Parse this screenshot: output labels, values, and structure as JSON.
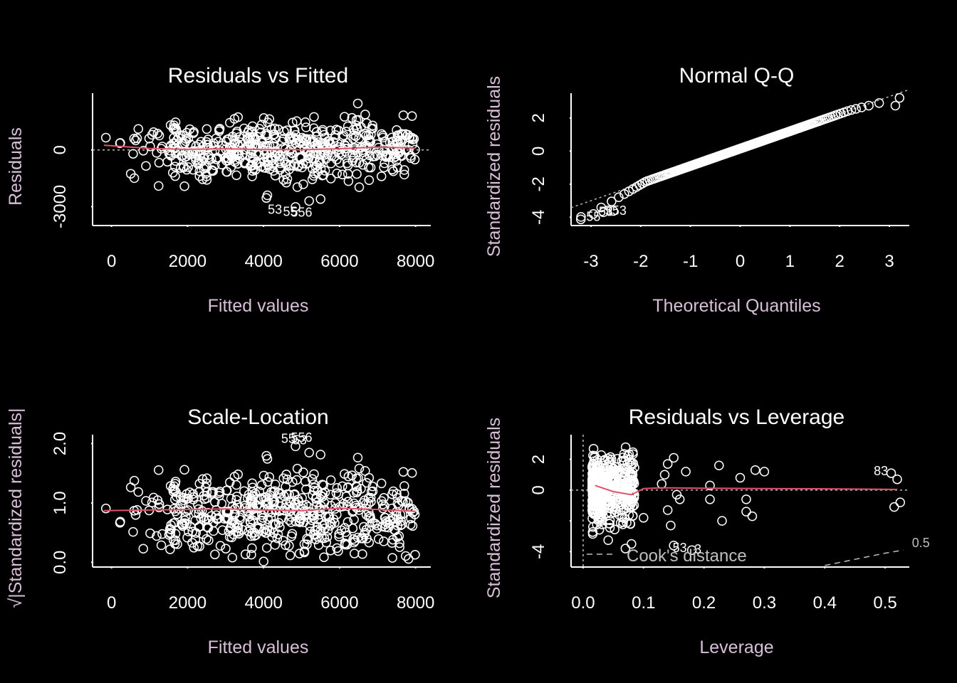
{
  "colors": {
    "background": "#000000",
    "foreground": "#ffffff",
    "label": "#d8bfd8",
    "smooth": "#df536b",
    "reference": "#bebebe"
  },
  "chart_data": [
    {
      "id": "p1",
      "type": "scatter",
      "title": "Residuals vs Fitted",
      "xlabel": "Fitted values",
      "ylabel": "Residuals",
      "xlim": [
        -500,
        8400
      ],
      "ylim": [
        -4000,
        3000
      ],
      "xticks": [
        0,
        2000,
        4000,
        6000,
        8000
      ],
      "yticks": [
        -3000,
        0
      ],
      "hline": 0,
      "smooth": {
        "x": [
          -200,
          1000,
          2000,
          3000,
          4000,
          5000,
          6000,
          7000,
          8000
        ],
        "y": [
          250,
          80,
          30,
          60,
          20,
          10,
          60,
          150,
          100
        ]
      },
      "annotations": [
        {
          "label": "53",
          "x": 4300,
          "y": -3200
        },
        {
          "label": "55",
          "x": 4700,
          "y": -3300
        },
        {
          "label": "556",
          "x": 5000,
          "y": -3350
        }
      ]
    },
    {
      "id": "p2",
      "type": "scatter",
      "title": "Normal Q-Q",
      "xlabel": "Theoretical Quantiles",
      "ylabel": "Standardized residuals",
      "xlim": [
        -3.4,
        3.4
      ],
      "ylim": [
        -4.5,
        3.5
      ],
      "xticks": [
        -3,
        -2,
        -1,
        0,
        1,
        2,
        3
      ],
      "yticks": [
        -4,
        -2,
        0,
        2
      ],
      "refline": {
        "intercept": 0.15,
        "slope": 1.05
      },
      "annotations": [
        {
          "label": "55",
          "x": -2.95,
          "y": -4.0
        },
        {
          "label": "53",
          "x": -2.7,
          "y": -3.7
        },
        {
          "label": "553",
          "x": -2.5,
          "y": -3.65
        }
      ]
    },
    {
      "id": "p3",
      "type": "scatter",
      "title": "Scale-Location",
      "xlabel": "Fitted values",
      "ylabel": "√|Standardized residuals|",
      "xlim": [
        -500,
        8400
      ],
      "ylim": [
        -0.08,
        2.15
      ],
      "xticks": [
        0,
        2000,
        4000,
        6000,
        8000
      ],
      "yticks": [
        0.0,
        1.0,
        2.0
      ],
      "ytick_labels": [
        "0.0",
        "1.0",
        "2.0"
      ],
      "smooth": {
        "x": [
          -200,
          1000,
          2000,
          3000,
          4000,
          5000,
          6000,
          7000,
          8000
        ],
        "y": [
          0.87,
          0.88,
          0.89,
          0.9,
          0.88,
          0.87,
          0.91,
          0.89,
          0.86
        ]
      },
      "annotations": [
        {
          "label": "55",
          "x": 4650,
          "y": 2.07
        },
        {
          "label": "53",
          "x": 4950,
          "y": 2.05
        },
        {
          "label": "556",
          "x": 5000,
          "y": 2.09
        }
      ]
    },
    {
      "id": "p4",
      "type": "scatter",
      "title": "Residuals vs Leverage",
      "xlabel": "Leverage",
      "ylabel": "Standardized residuals",
      "xlim": [
        -0.02,
        0.54
      ],
      "ylim": [
        -5.0,
        3.6
      ],
      "xticks": [
        0.0,
        0.1,
        0.2,
        0.3,
        0.4,
        0.5
      ],
      "xtick_labels": [
        "0.0",
        "0.1",
        "0.2",
        "0.3",
        "0.4",
        "0.5"
      ],
      "yticks": [
        -4,
        -2,
        0,
        2
      ],
      "ytick_labels": [
        "-4",
        "",
        "0",
        "2"
      ],
      "hline": 0,
      "vline": 0,
      "smooth": {
        "x": [
          0.02,
          0.05,
          0.08,
          0.1,
          0.13,
          0.2,
          0.3,
          0.4,
          0.5,
          0.52
        ],
        "y": [
          0.3,
          -0.1,
          -0.3,
          0.1,
          0.15,
          0.12,
          0.1,
          0.08,
          0.05,
          0.04
        ]
      },
      "cook_label": "Cook's distance",
      "cook_level": "0.5",
      "cook_curve": {
        "x": [
          0.4,
          0.45,
          0.5,
          0.53
        ],
        "y": [
          -4.9,
          -4.5,
          -4.1,
          -3.9
        ]
      },
      "annotations": [
        {
          "label": "83",
          "x": 0.493,
          "y": 1.2
        },
        {
          "label": "53",
          "x": 0.16,
          "y": -3.8
        },
        {
          "label": "3",
          "x": 0.19,
          "y": -3.9
        }
      ]
    }
  ]
}
